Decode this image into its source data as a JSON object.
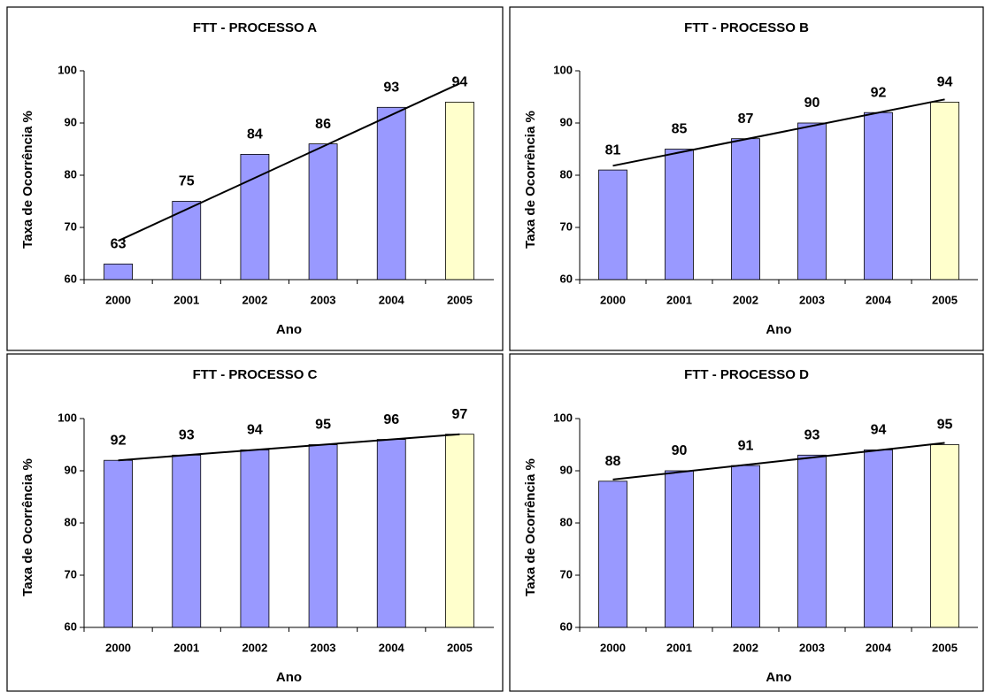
{
  "chart_data": [
    {
      "type": "bar",
      "title": "FTT - PROCESSO A",
      "x_label": "Ano",
      "y_label": "Taxa de Ocorrência %",
      "categories": [
        "2000",
        "2001",
        "2002",
        "2003",
        "2004",
        "2005"
      ],
      "values": [
        63,
        75,
        84,
        86,
        93,
        94
      ],
      "colors": [
        "#9999ff",
        "#9999ff",
        "#9999ff",
        "#9999ff",
        "#9999ff",
        "#ffffcc"
      ],
      "ylim": [
        60,
        100
      ],
      "yticks": [
        60,
        70,
        80,
        90,
        100
      ],
      "trendline": true
    },
    {
      "type": "bar",
      "title": "FTT - PROCESSO B",
      "x_label": "Ano",
      "y_label": "Taxa de Ocorrência %",
      "categories": [
        "2000",
        "2001",
        "2002",
        "2003",
        "2004",
        "2005"
      ],
      "values": [
        81,
        85,
        87,
        90,
        92,
        94
      ],
      "colors": [
        "#9999ff",
        "#9999ff",
        "#9999ff",
        "#9999ff",
        "#9999ff",
        "#ffffcc"
      ],
      "ylim": [
        60,
        100
      ],
      "yticks": [
        60,
        70,
        80,
        90,
        100
      ],
      "trendline": true
    },
    {
      "type": "bar",
      "title": "FTT - PROCESSO C",
      "x_label": "Ano",
      "y_label": "Taxa de Ocorrência %",
      "categories": [
        "2000",
        "2001",
        "2002",
        "2003",
        "2004",
        "2005"
      ],
      "values": [
        92,
        93,
        94,
        95,
        96,
        97
      ],
      "colors": [
        "#9999ff",
        "#9999ff",
        "#9999ff",
        "#9999ff",
        "#9999ff",
        "#ffffcc"
      ],
      "ylim": [
        60,
        100
      ],
      "yticks": [
        60,
        70,
        80,
        90,
        100
      ],
      "trendline": true
    },
    {
      "type": "bar",
      "title": "FTT - PROCESSO D",
      "x_label": "Ano",
      "y_label": "Taxa de Ocorrência %",
      "categories": [
        "2000",
        "2001",
        "2002",
        "2003",
        "2004",
        "2005"
      ],
      "values": [
        88,
        90,
        91,
        93,
        94,
        95
      ],
      "colors": [
        "#9999ff",
        "#9999ff",
        "#9999ff",
        "#9999ff",
        "#9999ff",
        "#ffffcc"
      ],
      "ylim": [
        60,
        100
      ],
      "yticks": [
        60,
        70,
        80,
        90,
        100
      ],
      "trendline": true
    }
  ]
}
